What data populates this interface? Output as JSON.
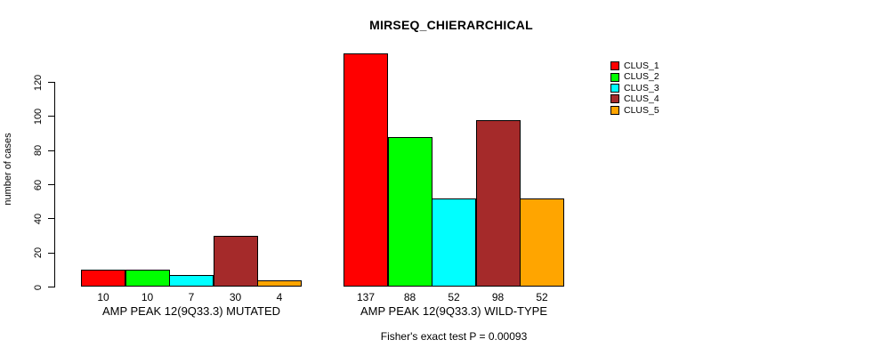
{
  "title": "MIRSEQ_CHIERARCHICAL",
  "chart_data": {
    "type": "bar",
    "title": "MIRSEQ_CHIERARCHICAL",
    "ylabel": "number of cases",
    "xlabel": "",
    "ylim": [
      0,
      137
    ],
    "yticks": [
      0,
      20,
      40,
      60,
      80,
      100,
      120
    ],
    "grid": false,
    "legend_position": "top-right",
    "categories": [
      "AMP PEAK 12(9Q33.3) MUTATED",
      "AMP PEAK 12(9Q33.3) WILD-TYPE"
    ],
    "series": [
      {
        "name": "CLUS_1",
        "color": "#FF0000",
        "values": [
          10,
          137
        ]
      },
      {
        "name": "CLUS_2",
        "color": "#00FF00",
        "values": [
          10,
          88
        ]
      },
      {
        "name": "CLUS_3",
        "color": "#00FFFF",
        "values": [
          7,
          52
        ]
      },
      {
        "name": "CLUS_4",
        "color": "#A52A2A",
        "values": [
          30,
          98
        ]
      },
      {
        "name": "CLUS_5",
        "color": "#FFA500",
        "values": [
          4,
          52
        ]
      }
    ],
    "bar_value_labels": [
      [
        10,
        10,
        7,
        30,
        4
      ],
      [
        137,
        88,
        52,
        98,
        52
      ]
    ],
    "annotation": "Fisher's exact test P = 0.00093"
  }
}
